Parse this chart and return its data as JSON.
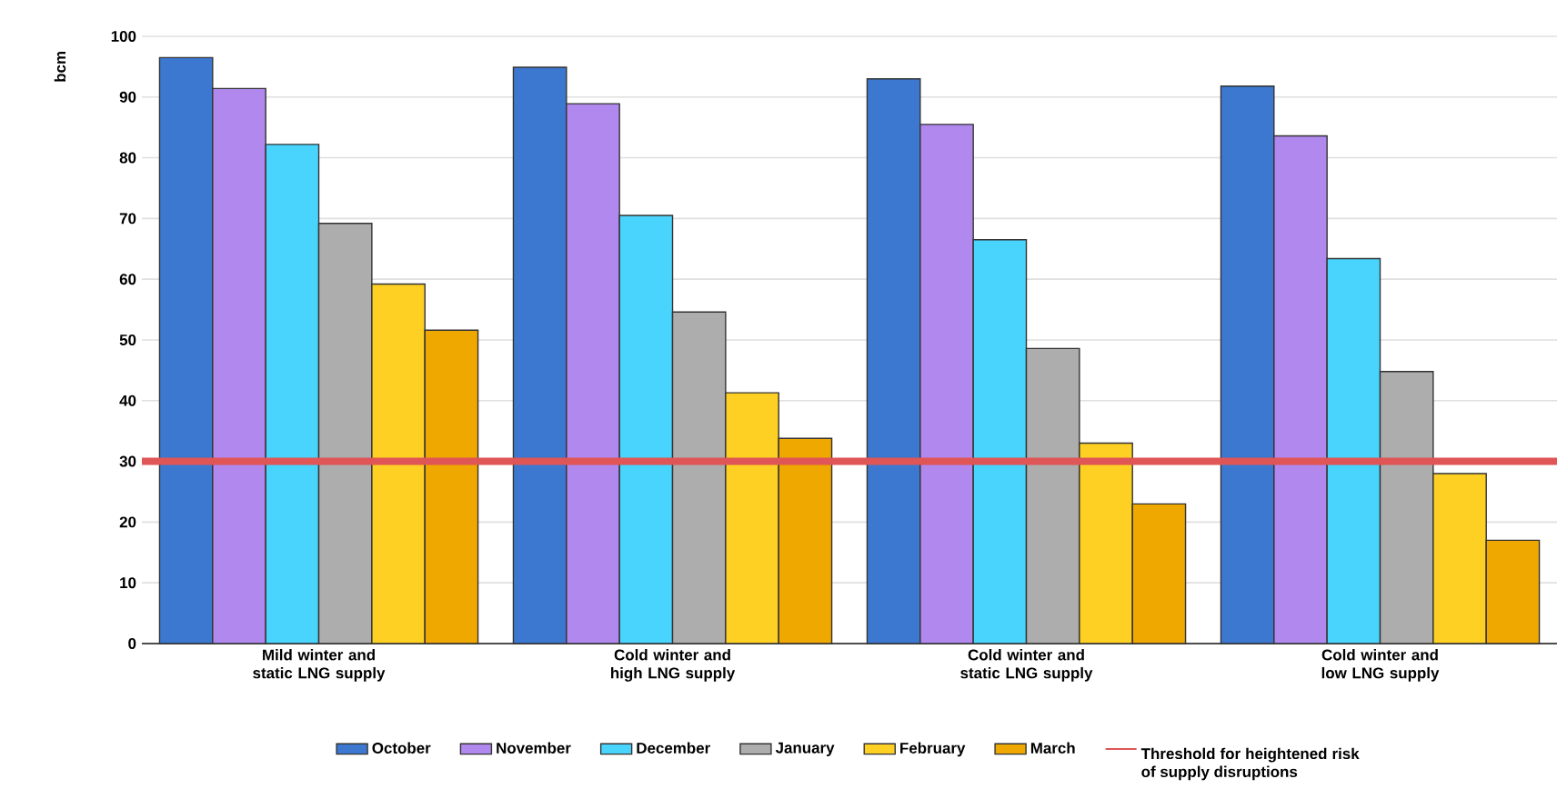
{
  "chart_data": {
    "type": "bar",
    "ylabel": "bcm",
    "categories": [
      "Mild winter and static LNG supply",
      "Cold winter and high LNG supply",
      "Cold winter and static LNG supply",
      "Cold winter and low LNG supply"
    ],
    "series": [
      {
        "name": "October",
        "color": "#3c78d0",
        "values": [
          96.5,
          94.9,
          93.0,
          91.8
        ]
      },
      {
        "name": "November",
        "color": "#b088ee",
        "values": [
          91.4,
          88.9,
          85.5,
          83.6
        ]
      },
      {
        "name": "December",
        "color": "#48d4fc",
        "values": [
          82.2,
          70.5,
          66.5,
          63.4
        ]
      },
      {
        "name": "January",
        "color": "#adadad",
        "values": [
          69.2,
          54.6,
          48.6,
          44.8
        ]
      },
      {
        "name": "February",
        "color": "#fdd023",
        "values": [
          59.2,
          41.3,
          33.0,
          28.0
        ]
      },
      {
        "name": "March",
        "color": "#eea800",
        "values": [
          51.6,
          33.8,
          23.0,
          17.0
        ]
      }
    ],
    "ylim": [
      0,
      100
    ],
    "yticks": [
      0,
      10,
      20,
      30,
      40,
      50,
      60,
      70,
      80,
      90,
      100
    ],
    "ref_lines": [
      {
        "axis": "y",
        "value": 30,
        "label": "Threshold for heightened risk of supply disruptions",
        "color": "#e05555"
      }
    ],
    "grid": "y",
    "legend": "bottom"
  }
}
